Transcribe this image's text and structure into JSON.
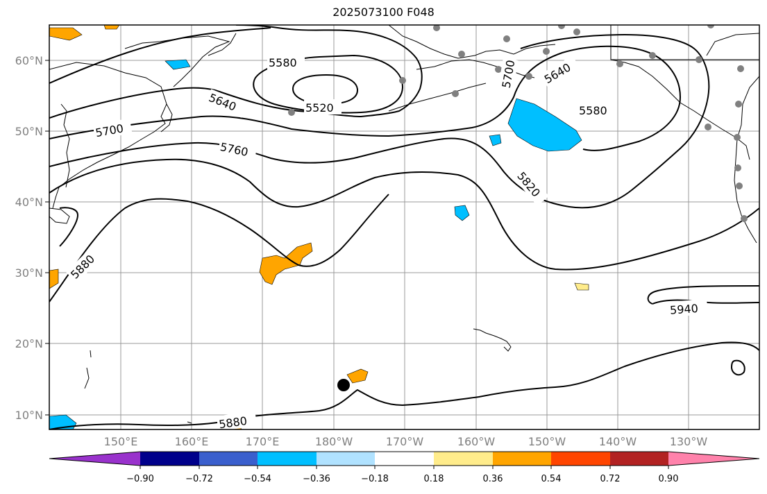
{
  "title": "2025073100 F048",
  "lat_labels": [
    "60°N",
    "50°N",
    "40°N",
    "30°N",
    "20°N",
    "10°N"
  ],
  "lon_labels": [
    "150°E",
    "160°E",
    "170°E",
    "180°W",
    "170°W",
    "160°W",
    "150°W",
    "140°W",
    "130°W"
  ],
  "contour_labels": [
    "5580",
    "5520",
    "5640",
    "5700",
    "5760",
    "5820",
    "5880",
    "5640",
    "5580",
    "5700",
    "5940",
    "5880"
  ],
  "colorbar": {
    "colors": [
      "#9932CC",
      "#00008B",
      "#3A5FCD",
      "#00BFFF",
      "#B0E2FF",
      "#FFFFFF",
      "#FFEC8B",
      "#FFA500",
      "#FF4500",
      "#B22222",
      "#FF82AB"
    ],
    "tick_labels": [
      "−0.90",
      "−0.72",
      "−0.54",
      "−0.36",
      "−0.18",
      "0.18",
      "0.36",
      "0.54",
      "0.72",
      "0.90"
    ]
  },
  "colors": {
    "contour": "#000000",
    "grid": "#999999",
    "station": "#808080",
    "positive": "#FFA500",
    "negative": "#00BFFF"
  }
}
